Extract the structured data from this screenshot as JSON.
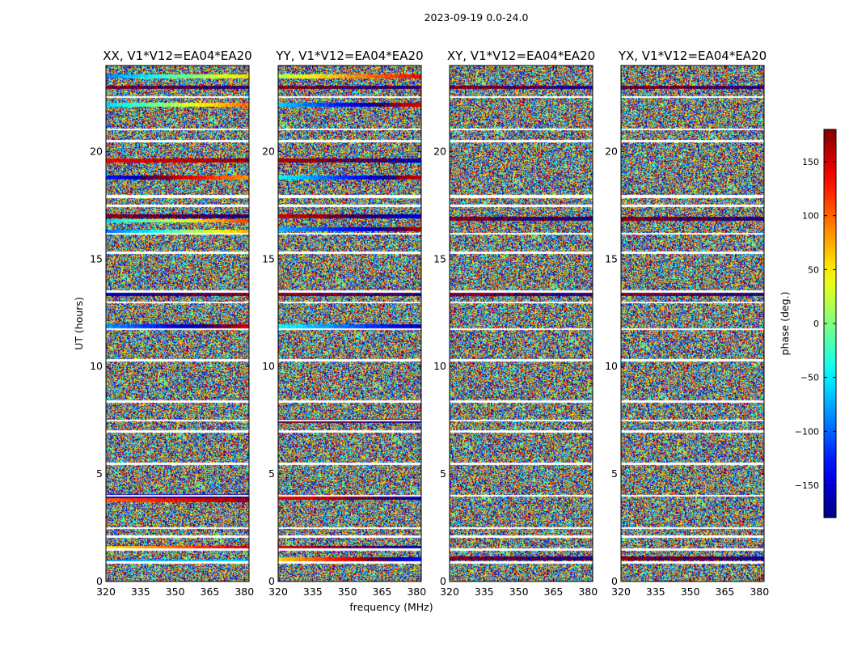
{
  "figure": {
    "suptitle": "2023-09-19 0.0-24.0"
  },
  "chart_data": {
    "type": "heatmap",
    "xlabel": "frequency (MHz)",
    "ylabel": "UT (hours)",
    "xlim": [
      320,
      382
    ],
    "ylim": [
      0,
      24
    ],
    "x_ticks": [
      320,
      335,
      350,
      365,
      380
    ],
    "y_ticks": [
      0,
      5,
      10,
      15,
      20
    ],
    "colormap": "jet",
    "colorbar": {
      "label": "phase (deg.)",
      "range": [
        -180,
        180
      ],
      "ticks": [
        -150,
        -100,
        -50,
        0,
        50,
        100,
        150
      ],
      "tick_labels": [
        "−150",
        "−100",
        "−50",
        "0",
        "50",
        "100",
        "150"
      ]
    },
    "panels": [
      {
        "title": "XX, V1*V12=EA04*EA20",
        "polarization": "XX"
      },
      {
        "title": "YY, V1*V12=EA04*EA20",
        "polarization": "YY"
      },
      {
        "title": "XY, V1*V12=EA04*EA20",
        "polarization": "XY"
      },
      {
        "title": "YX, V1*V12=EA04*EA20",
        "polarization": "YX"
      }
    ],
    "flagged_ut_bands": [
      [
        0.85,
        0.95
      ],
      [
        1.45,
        1.55
      ],
      [
        2.05,
        2.15
      ],
      [
        2.45,
        2.55
      ],
      [
        3.95,
        4.05
      ],
      [
        5.45,
        5.55
      ],
      [
        6.95,
        7.05
      ],
      [
        7.45,
        7.55
      ],
      [
        8.35,
        8.45
      ],
      [
        10.25,
        10.35
      ],
      [
        11.7,
        11.8
      ],
      [
        12.95,
        13.05
      ],
      [
        13.45,
        13.55
      ],
      [
        15.25,
        15.35
      ],
      [
        16.15,
        16.25
      ],
      [
        17.45,
        17.55
      ],
      [
        17.85,
        18.0
      ],
      [
        20.45,
        20.55
      ],
      [
        21.0,
        21.1
      ],
      [
        22.5,
        22.6
      ]
    ],
    "coherent_ut_bands": {
      "XX": [
        {
          "ut": 0.95,
          "phase_start": -80,
          "phase_end": -60
        },
        {
          "ut": 1.6,
          "phase_start": 50,
          "phase_end": 160
        },
        {
          "ut": 3.8,
          "phase_start": 100,
          "phase_end": 170
        },
        {
          "ut": 4.0,
          "phase_start": -150,
          "phase_end": -170
        },
        {
          "ut": 11.9,
          "phase_start": -80,
          "phase_end": 150
        },
        {
          "ut": 13.4,
          "phase_start": -160,
          "phase_end": 170
        },
        {
          "ut": 16.3,
          "phase_start": -100,
          "phase_end": 80
        },
        {
          "ut": 16.8,
          "phase_start": -60,
          "phase_end": 120
        },
        {
          "ut": 17.0,
          "phase_start": 170,
          "phase_end": -170
        },
        {
          "ut": 18.8,
          "phase_start": -130,
          "phase_end": 80
        },
        {
          "ut": 19.6,
          "phase_start": 140,
          "phase_end": 170
        },
        {
          "ut": 22.2,
          "phase_start": -60,
          "phase_end": 100
        },
        {
          "ut": 23.0,
          "phase_start": 170,
          "phase_end": -170
        },
        {
          "ut": 23.5,
          "phase_start": -90,
          "phase_end": 60
        }
      ],
      "YY": [
        {
          "ut": 1.05,
          "phase_start": 60,
          "phase_end": -130
        },
        {
          "ut": 1.6,
          "phase_start": 150,
          "phase_end": -160
        },
        {
          "ut": 3.9,
          "phase_start": 140,
          "phase_end": -160
        },
        {
          "ut": 7.5,
          "phase_start": 170,
          "phase_end": -170
        },
        {
          "ut": 11.9,
          "phase_start": -40,
          "phase_end": -160
        },
        {
          "ut": 13.4,
          "phase_start": 170,
          "phase_end": -170
        },
        {
          "ut": 16.4,
          "phase_start": -70,
          "phase_end": 160
        },
        {
          "ut": 17.0,
          "phase_start": 150,
          "phase_end": -150
        },
        {
          "ut": 18.8,
          "phase_start": -40,
          "phase_end": 150
        },
        {
          "ut": 19.6,
          "phase_start": 160,
          "phase_end": -160
        },
        {
          "ut": 22.2,
          "phase_start": -60,
          "phase_end": 140
        },
        {
          "ut": 23.0,
          "phase_start": 170,
          "phase_end": -170
        },
        {
          "ut": 23.5,
          "phase_start": 20,
          "phase_end": 140
        }
      ],
      "XY": [
        {
          "ut": 1.1,
          "phase_start": 170,
          "phase_end": -170
        },
        {
          "ut": 13.4,
          "phase_start": 170,
          "phase_end": -170
        },
        {
          "ut": 16.9,
          "phase_start": 170,
          "phase_end": -170
        },
        {
          "ut": 23.0,
          "phase_start": 170,
          "phase_end": -170
        }
      ],
      "YX": [
        {
          "ut": 1.1,
          "phase_start": 170,
          "phase_end": -170
        },
        {
          "ut": 13.4,
          "phase_start": 170,
          "phase_end": -170
        },
        {
          "ut": 16.9,
          "phase_start": 170,
          "phase_end": -170
        },
        {
          "ut": 23.0,
          "phase_start": 170,
          "phase_end": -170
        }
      ]
    },
    "grid": false
  }
}
